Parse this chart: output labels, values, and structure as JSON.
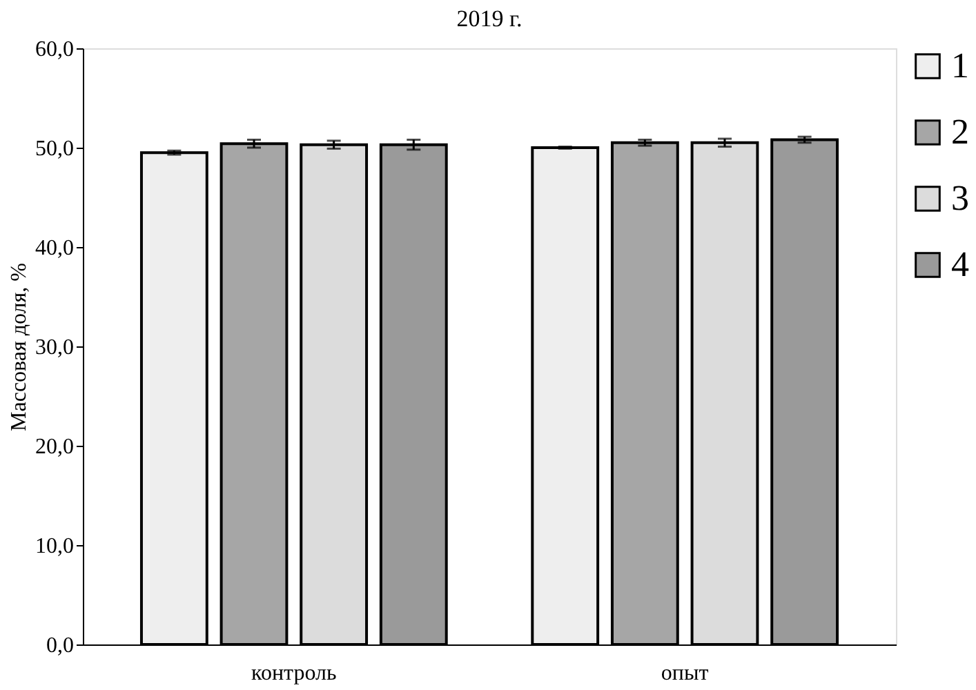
{
  "chart_data": {
    "type": "bar",
    "title": "2019 г.",
    "ylabel": "Массовая доля, %",
    "categories": [
      "контроль",
      "опыт"
    ],
    "series": [
      {
        "name": "1",
        "color": "#eeeeee",
        "values": [
          49.5,
          50.0
        ],
        "errors": [
          0.2,
          0.1
        ]
      },
      {
        "name": "2",
        "color": "#a6a6a6",
        "values": [
          50.4,
          50.5
        ],
        "errors": [
          0.4,
          0.3
        ]
      },
      {
        "name": "3",
        "color": "#dcdcdc",
        "values": [
          50.3,
          50.5
        ],
        "errors": [
          0.4,
          0.4
        ]
      },
      {
        "name": "4",
        "color": "#9a9a9a",
        "values": [
          50.3,
          50.8
        ],
        "errors": [
          0.5,
          0.3
        ]
      }
    ],
    "ylim": [
      0,
      60
    ],
    "yticks": [
      {
        "value": 0,
        "label": "0,0"
      },
      {
        "value": 10,
        "label": "10,0"
      },
      {
        "value": 20,
        "label": "20,0"
      },
      {
        "value": 30,
        "label": "30,0"
      },
      {
        "value": 40,
        "label": "40,0"
      },
      {
        "value": 50,
        "label": "50,0"
      },
      {
        "value": 60,
        "label": "60,0"
      }
    ],
    "legend": "right",
    "grid": false
  }
}
